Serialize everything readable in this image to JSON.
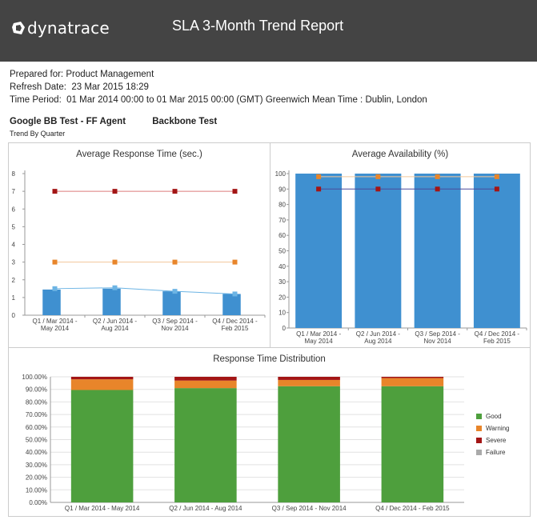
{
  "header": {
    "brand": "dynatrace",
    "title": "SLA 3-Month Trend Report"
  },
  "meta": {
    "prepared_for": "Prepared for: Product Management",
    "refresh_date": "Refresh Date:  23 Mar 2015 18:29",
    "time_period": "Time Period:  01 Mar 2014 00:00 to 01 Mar 2015 00:00 (GMT) Greenwich Mean Time : Dublin, London"
  },
  "tests": [
    "Google BB Test - FF Agent",
    "Backbone Test"
  ],
  "trend_label": "Trend By Quarter",
  "colors": {
    "bar_blue": "#3f90d0",
    "line_blue": "#6cb4e4",
    "warning": "#e8852a",
    "severe": "#a31515",
    "good": "#4e9f3d",
    "failure": "#aaaaaa"
  },
  "chart_data": [
    {
      "type": "bar",
      "title": "Average Response Time (sec.)",
      "categories": [
        [
          "Q1 /  Mar 2014 -",
          "May 2014"
        ],
        [
          "Q2 /  Jun 2014 -",
          "Aug 2014"
        ],
        [
          "Q3 /  Sep 2014 -",
          "Nov 2014"
        ],
        [
          "Q4 /  Dec 2014 -",
          "Feb 2015"
        ]
      ],
      "ylim": [
        0,
        8
      ],
      "yticks": [
        0,
        1,
        2,
        3,
        4,
        5,
        6,
        7,
        8
      ],
      "grid": false,
      "series": [
        {
          "kind": "bar",
          "values": [
            1.45,
            1.5,
            1.35,
            1.2
          ]
        },
        {
          "kind": "line",
          "values": [
            1.5,
            1.55,
            1.35,
            1.2
          ]
        },
        {
          "kind": "line",
          "values": [
            3,
            3,
            3,
            3
          ]
        },
        {
          "kind": "line",
          "values": [
            7,
            7,
            7,
            7
          ]
        }
      ]
    },
    {
      "type": "bar",
      "title": "Average Availability (%)",
      "categories": [
        [
          "Q1 /  Mar 2014 -",
          "May 2014"
        ],
        [
          "Q2 /  Jun 2014 -",
          "Aug 2014"
        ],
        [
          "Q3 /  Sep 2014 -",
          "Nov 2014"
        ],
        [
          "Q4 /  Dec 2014 -",
          "Feb 2015"
        ]
      ],
      "ylim": [
        0,
        100
      ],
      "yticks": [
        0,
        10,
        20,
        30,
        40,
        50,
        60,
        70,
        80,
        90,
        100
      ],
      "grid": false,
      "series": [
        {
          "kind": "bar",
          "values": [
            100,
            100,
            100,
            100
          ]
        },
        {
          "kind": "line",
          "values": [
            98,
            98,
            98,
            98
          ]
        },
        {
          "kind": "line",
          "values": [
            90,
            90,
            90,
            90
          ]
        }
      ]
    },
    {
      "type": "bar",
      "stacked": true,
      "title": "Response Time Distribution",
      "categories": [
        "Q1 /  Mar 2014 -  May 2014",
        "Q2 /  Jun 2014 -  Aug 2014",
        "Q3 /  Sep 2014 -  Nov 2014",
        "Q4 /  Dec 2014 -  Feb 2015"
      ],
      "ylim": [
        0,
        100
      ],
      "yticks": [
        "0.00%",
        "10.00%",
        "20.00%",
        "30.00%",
        "40.00%",
        "50.00%",
        "60.00%",
        "70.00%",
        "80.00%",
        "90.00%",
        "100.00%"
      ],
      "grid": true,
      "legend_position": "right",
      "series": [
        {
          "name": "Good",
          "values": [
            89.5,
            91.0,
            92.5,
            92.5
          ]
        },
        {
          "name": "Warning",
          "values": [
            8.5,
            6.0,
            5.0,
            6.5
          ]
        },
        {
          "name": "Severe",
          "values": [
            2.0,
            3.0,
            2.5,
            1.0
          ]
        },
        {
          "name": "Failure",
          "values": [
            0,
            0,
            0,
            0
          ]
        }
      ]
    }
  ]
}
